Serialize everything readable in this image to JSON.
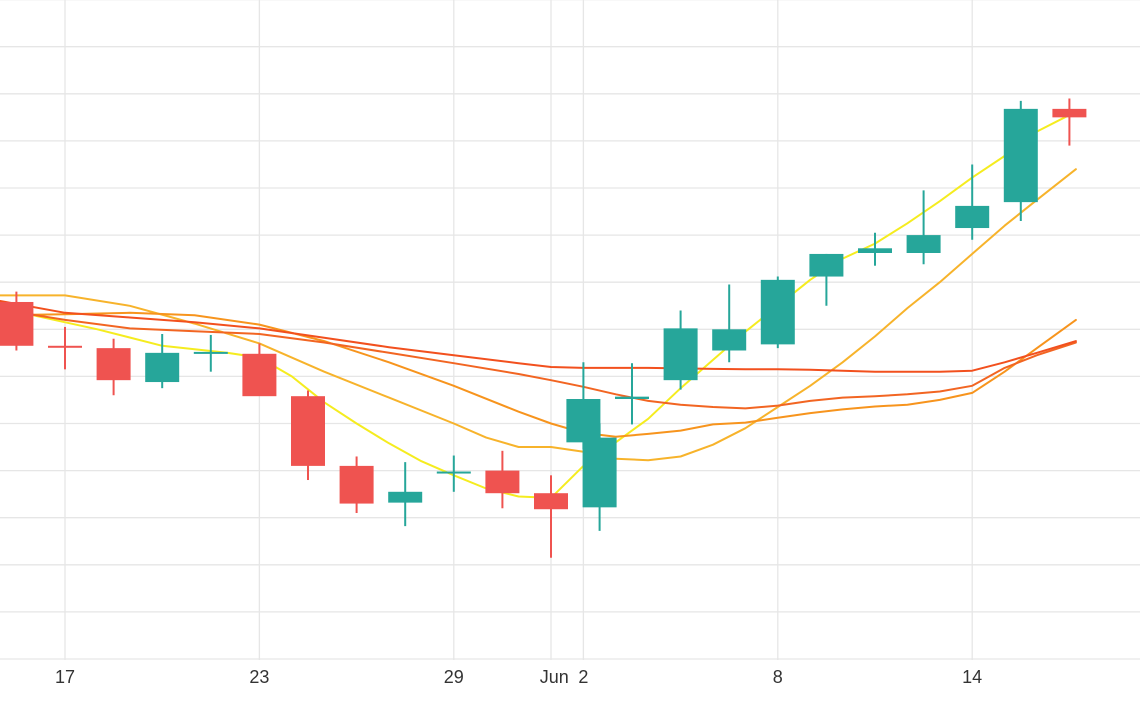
{
  "chart_data": {
    "type": "candlestick",
    "title": "",
    "xlabel": "",
    "ylabel": "",
    "grid": true,
    "colors": {
      "up": "#26a69a",
      "down": "#ef5350",
      "background": "#ffffff",
      "grid": "#e6e6e6",
      "tick_text": "#333333"
    },
    "x_ticks": [
      {
        "day": 17,
        "label": "17"
      },
      {
        "day": 23,
        "label": "23"
      },
      {
        "day": 29,
        "label": "29"
      },
      {
        "day": 32,
        "label": "Jun"
      },
      {
        "day": 33,
        "label": "2"
      },
      {
        "day": 39,
        "label": "8"
      },
      {
        "day": 45,
        "label": "14"
      }
    ],
    "x_range": [
      15,
      48.2
    ],
    "y_range": [
      0,
      14
    ],
    "candles": [
      {
        "day": 15.5,
        "open": 7.58,
        "high": 7.8,
        "low": 6.55,
        "close": 6.65
      },
      {
        "day": 17,
        "open": 6.65,
        "high": 7.05,
        "low": 6.15,
        "close": 6.62
      },
      {
        "day": 18.5,
        "open": 6.6,
        "high": 6.8,
        "low": 5.6,
        "close": 5.92
      },
      {
        "day": 20,
        "open": 5.88,
        "high": 6.9,
        "low": 5.75,
        "close": 6.5
      },
      {
        "day": 21.5,
        "open": 6.52,
        "high": 6.88,
        "low": 6.1,
        "close": 6.52
      },
      {
        "day": 23,
        "open": 6.48,
        "high": 6.7,
        "low": 5.7,
        "close": 5.58
      },
      {
        "day": 24.5,
        "open": 5.58,
        "high": 5.7,
        "low": 3.8,
        "close": 4.1
      },
      {
        "day": 26,
        "open": 4.1,
        "high": 4.3,
        "low": 3.1,
        "close": 3.3
      },
      {
        "day": 27.5,
        "open": 3.32,
        "high": 4.18,
        "low": 2.82,
        "close": 3.55
      },
      {
        "day": 29,
        "open": 3.98,
        "high": 4.32,
        "low": 3.55,
        "close": 3.98
      },
      {
        "day": 30.5,
        "open": 4.0,
        "high": 4.42,
        "low": 3.2,
        "close": 3.52
      },
      {
        "day": 32,
        "open": 3.52,
        "high": 3.9,
        "low": 2.15,
        "close": 3.18
      },
      {
        "day": 33.5,
        "open": 3.22,
        "high": 5.0,
        "low": 2.72,
        "close": 4.7
      },
      {
        "day": 33,
        "open": 4.6,
        "high": 6.3,
        "low": 4.45,
        "close": 5.52
      },
      {
        "day": 34.5,
        "open": 5.52,
        "high": 6.28,
        "low": 4.98,
        "close": 5.57
      },
      {
        "day": 36,
        "open": 5.92,
        "high": 7.4,
        "low": 5.72,
        "close": 7.02
      },
      {
        "day": 37.5,
        "open": 6.55,
        "high": 7.95,
        "low": 6.3,
        "close": 7.0
      },
      {
        "day": 39,
        "open": 6.68,
        "high": 8.12,
        "low": 6.6,
        "close": 8.05
      },
      {
        "day": 40.5,
        "open": 8.12,
        "high": 8.6,
        "low": 7.5,
        "close": 8.6
      },
      {
        "day": 42,
        "open": 8.62,
        "high": 9.05,
        "low": 8.35,
        "close": 8.72
      },
      {
        "day": 43.5,
        "open": 8.62,
        "high": 9.95,
        "low": 8.38,
        "close": 9.0
      },
      {
        "day": 45,
        "open": 9.15,
        "high": 10.5,
        "low": 8.9,
        "close": 9.62
      },
      {
        "day": 46.5,
        "open": 9.7,
        "high": 11.85,
        "low": 9.3,
        "close": 11.68
      },
      {
        "day": 48,
        "open": 11.68,
        "high": 11.9,
        "low": 10.9,
        "close": 11.5
      }
    ],
    "series": [
      {
        "color": "#f5ec1f",
        "points": [
          [
            15,
            7.45
          ],
          [
            16,
            7.3
          ],
          [
            18,
            7.0
          ],
          [
            20,
            6.65
          ],
          [
            22,
            6.5
          ],
          [
            23,
            6.4
          ],
          [
            24,
            6.0
          ],
          [
            25,
            5.45
          ],
          [
            26,
            5.0
          ],
          [
            27,
            4.58
          ],
          [
            28,
            4.2
          ],
          [
            29,
            3.9
          ],
          [
            30,
            3.62
          ],
          [
            31,
            3.45
          ],
          [
            32,
            3.42
          ],
          [
            33,
            4.1
          ],
          [
            34,
            4.6
          ],
          [
            35,
            5.1
          ],
          [
            36,
            5.75
          ],
          [
            37,
            6.35
          ],
          [
            38,
            6.95
          ],
          [
            39,
            7.5
          ],
          [
            40,
            8.05
          ],
          [
            41,
            8.5
          ],
          [
            42,
            8.82
          ],
          [
            43,
            9.25
          ],
          [
            44,
            9.72
          ],
          [
            45,
            10.22
          ],
          [
            46,
            10.68
          ],
          [
            47,
            11.2
          ],
          [
            48.2,
            11.62
          ]
        ]
      },
      {
        "color": "#f7b32b",
        "points": [
          [
            15,
            7.72
          ],
          [
            17,
            7.72
          ],
          [
            19,
            7.5
          ],
          [
            21,
            7.12
          ],
          [
            23,
            6.7
          ],
          [
            25,
            6.1
          ],
          [
            27,
            5.55
          ],
          [
            29,
            5.0
          ],
          [
            30,
            4.7
          ],
          [
            31,
            4.5
          ],
          [
            32,
            4.5
          ],
          [
            33,
            4.4
          ],
          [
            34,
            4.25
          ],
          [
            35,
            4.22
          ],
          [
            36,
            4.3
          ],
          [
            37,
            4.55
          ],
          [
            38,
            4.9
          ],
          [
            39,
            5.35
          ],
          [
            40,
            5.8
          ],
          [
            41,
            6.3
          ],
          [
            42,
            6.85
          ],
          [
            43,
            7.45
          ],
          [
            44,
            8.0
          ],
          [
            45,
            8.6
          ],
          [
            46,
            9.2
          ],
          [
            47,
            9.75
          ],
          [
            48.2,
            10.4
          ]
        ]
      },
      {
        "color": "#f7941d",
        "points": [
          [
            15,
            7.3
          ],
          [
            17,
            7.32
          ],
          [
            19,
            7.35
          ],
          [
            21,
            7.3
          ],
          [
            23,
            7.1
          ],
          [
            25,
            6.75
          ],
          [
            27,
            6.3
          ],
          [
            29,
            5.8
          ],
          [
            31,
            5.25
          ],
          [
            32,
            5.0
          ],
          [
            33,
            4.8
          ],
          [
            34,
            4.72
          ],
          [
            35,
            4.78
          ],
          [
            36,
            4.85
          ],
          [
            37,
            4.98
          ],
          [
            38,
            5.02
          ],
          [
            39,
            5.12
          ],
          [
            40,
            5.22
          ],
          [
            41,
            5.3
          ],
          [
            42,
            5.36
          ],
          [
            43,
            5.4
          ],
          [
            44,
            5.5
          ],
          [
            45,
            5.65
          ],
          [
            46,
            6.1
          ],
          [
            47,
            6.6
          ],
          [
            48.2,
            7.2
          ]
        ]
      },
      {
        "color": "#f26522",
        "points": [
          [
            15,
            7.42
          ],
          [
            17,
            7.2
          ],
          [
            19,
            7.02
          ],
          [
            21,
            6.96
          ],
          [
            23,
            6.9
          ],
          [
            25,
            6.72
          ],
          [
            27,
            6.5
          ],
          [
            29,
            6.28
          ],
          [
            31,
            6.05
          ],
          [
            32,
            5.92
          ],
          [
            33,
            5.78
          ],
          [
            34,
            5.62
          ],
          [
            35,
            5.48
          ],
          [
            36,
            5.4
          ],
          [
            37,
            5.35
          ],
          [
            38,
            5.32
          ],
          [
            39,
            5.38
          ],
          [
            40,
            5.48
          ],
          [
            41,
            5.55
          ],
          [
            42,
            5.58
          ],
          [
            43,
            5.62
          ],
          [
            44,
            5.68
          ],
          [
            45,
            5.8
          ],
          [
            46,
            6.18
          ],
          [
            47,
            6.45
          ],
          [
            48.2,
            6.72
          ]
        ]
      },
      {
        "color": "#f2501e",
        "points": [
          [
            15,
            7.6
          ],
          [
            17,
            7.35
          ],
          [
            19,
            7.25
          ],
          [
            21,
            7.15
          ],
          [
            23,
            7.02
          ],
          [
            25,
            6.82
          ],
          [
            27,
            6.62
          ],
          [
            29,
            6.45
          ],
          [
            31,
            6.28
          ],
          [
            32,
            6.2
          ],
          [
            33,
            6.18
          ],
          [
            34,
            6.18
          ],
          [
            35,
            6.18
          ],
          [
            36,
            6.17
          ],
          [
            37,
            6.16
          ],
          [
            38,
            6.15
          ],
          [
            39,
            6.15
          ],
          [
            40,
            6.14
          ],
          [
            41,
            6.12
          ],
          [
            42,
            6.1
          ],
          [
            43,
            6.1
          ],
          [
            44,
            6.1
          ],
          [
            45,
            6.12
          ],
          [
            46,
            6.3
          ],
          [
            47,
            6.5
          ],
          [
            48.2,
            6.75
          ]
        ]
      }
    ]
  }
}
